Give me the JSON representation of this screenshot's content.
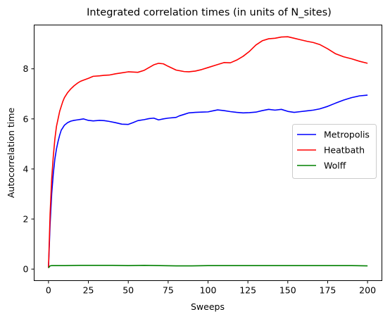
{
  "chart_data": {
    "type": "line",
    "title": "Integrated correlation times (in units of N_sites)",
    "xlabel": "Sweeps",
    "ylabel": "Autocorrelation time",
    "xlim": [
      -9,
      209
    ],
    "ylim": [
      -0.46,
      9.75
    ],
    "xticks": [
      0,
      25,
      50,
      75,
      100,
      125,
      150,
      175,
      200
    ],
    "yticks": [
      0,
      2,
      4,
      6,
      8
    ],
    "grid": false,
    "legend_position": "center-right",
    "series": [
      {
        "name": "Metropolis",
        "color": "#0000ff",
        "x": [
          0,
          1,
          2,
          3,
          4,
          5,
          6,
          7,
          8,
          9,
          10,
          12,
          14,
          16,
          18,
          20,
          22,
          25,
          28,
          32,
          35,
          38,
          42,
          46,
          50,
          53,
          56,
          60,
          63,
          66,
          69,
          72,
          75,
          80,
          82,
          85,
          88,
          92,
          96,
          100,
          103,
          106,
          110,
          114,
          118,
          122,
          126,
          130,
          134,
          138,
          142,
          146,
          150,
          154,
          158,
          162,
          166,
          170,
          175,
          180,
          185,
          190,
          195,
          200
        ],
        "values": [
          0.05,
          1.8,
          3.0,
          3.8,
          4.4,
          4.8,
          5.1,
          5.35,
          5.55,
          5.65,
          5.75,
          5.85,
          5.91,
          5.94,
          5.96,
          5.98,
          6.0,
          5.94,
          5.92,
          5.94,
          5.93,
          5.9,
          5.85,
          5.79,
          5.78,
          5.85,
          5.93,
          5.97,
          6.01,
          6.03,
          5.96,
          6.0,
          6.03,
          6.06,
          6.12,
          6.18,
          6.24,
          6.26,
          6.27,
          6.28,
          6.32,
          6.36,
          6.33,
          6.29,
          6.26,
          6.24,
          6.25,
          6.27,
          6.33,
          6.38,
          6.35,
          6.38,
          6.3,
          6.26,
          6.29,
          6.32,
          6.35,
          6.4,
          6.5,
          6.63,
          6.75,
          6.85,
          6.92,
          6.95
        ]
      },
      {
        "name": "Heatbath",
        "color": "#ff0000",
        "x": [
          0,
          1,
          2,
          3,
          4,
          5,
          6,
          7,
          8,
          9,
          10,
          12,
          14,
          16,
          18,
          20,
          22,
          25,
          28,
          32,
          35,
          38,
          42,
          46,
          50,
          53,
          56,
          60,
          63,
          66,
          69,
          72,
          75,
          80,
          85,
          88,
          92,
          96,
          100,
          105,
          110,
          114,
          118,
          122,
          126,
          130,
          134,
          138,
          142,
          146,
          150,
          154,
          158,
          162,
          166,
          170,
          175,
          180,
          185,
          190,
          195,
          200
        ],
        "values": [
          0.05,
          2.2,
          3.6,
          4.5,
          5.2,
          5.7,
          6.0,
          6.3,
          6.5,
          6.7,
          6.85,
          7.05,
          7.2,
          7.32,
          7.42,
          7.5,
          7.55,
          7.62,
          7.7,
          7.72,
          7.74,
          7.75,
          7.8,
          7.84,
          7.88,
          7.87,
          7.86,
          7.94,
          8.05,
          8.16,
          8.22,
          8.2,
          8.1,
          7.95,
          7.89,
          7.88,
          7.91,
          7.97,
          8.05,
          8.15,
          8.25,
          8.24,
          8.35,
          8.5,
          8.7,
          8.95,
          9.12,
          9.2,
          9.22,
          9.27,
          9.28,
          9.22,
          9.16,
          9.1,
          9.05,
          8.97,
          8.8,
          8.6,
          8.48,
          8.4,
          8.3,
          8.22
        ]
      },
      {
        "name": "Wolff",
        "color": "#008000",
        "x": [
          0,
          1,
          2,
          3,
          5,
          10,
          20,
          30,
          40,
          50,
          60,
          70,
          80,
          90,
          100,
          110,
          120,
          130,
          140,
          150,
          160,
          170,
          180,
          190,
          200
        ],
        "values": [
          0.05,
          0.13,
          0.14,
          0.14,
          0.14,
          0.14,
          0.15,
          0.15,
          0.15,
          0.14,
          0.15,
          0.14,
          0.13,
          0.13,
          0.14,
          0.14,
          0.14,
          0.14,
          0.14,
          0.14,
          0.14,
          0.14,
          0.14,
          0.14,
          0.13
        ]
      }
    ]
  }
}
